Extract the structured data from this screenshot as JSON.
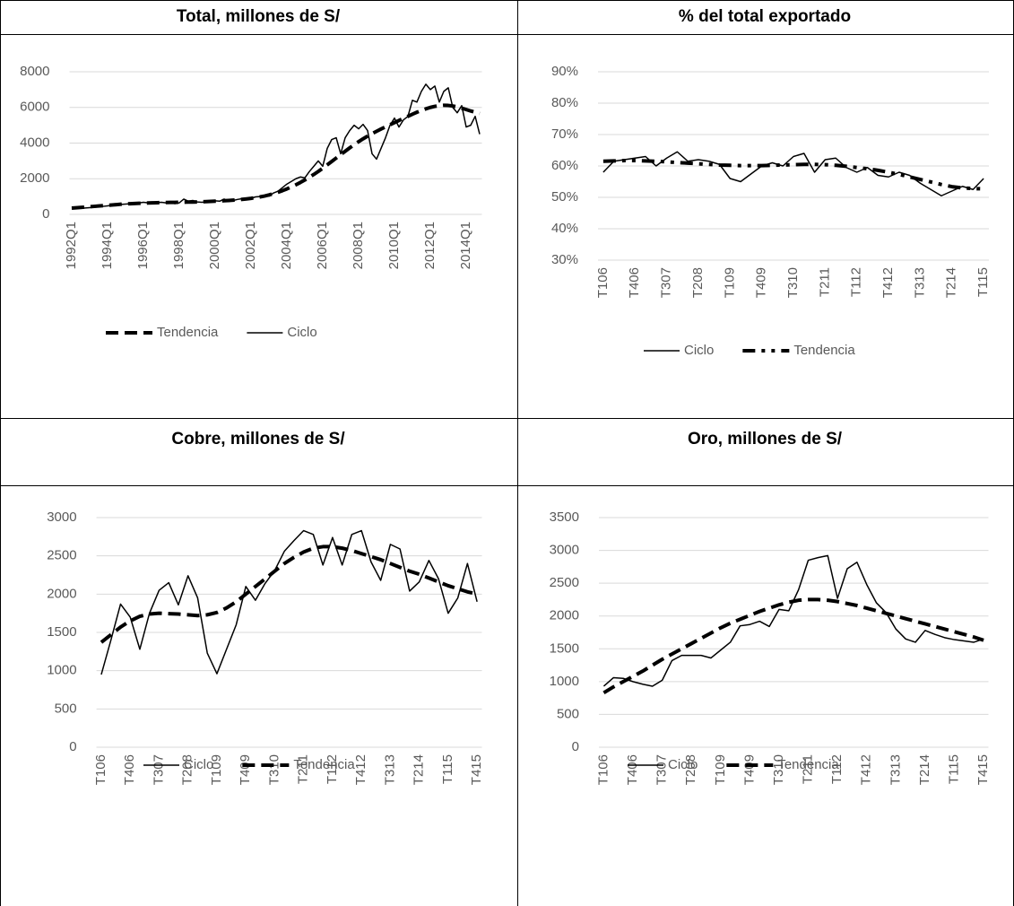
{
  "chart_data": [
    {
      "type": "line",
      "title": "Total, millones de S/",
      "categories": [
        "1992Q1",
        null,
        null,
        null,
        null,
        null,
        null,
        null,
        "1994Q1",
        null,
        null,
        null,
        null,
        null,
        null,
        null,
        "1996Q1",
        null,
        null,
        null,
        null,
        null,
        null,
        null,
        "1998Q1",
        null,
        null,
        null,
        null,
        null,
        null,
        null,
        "2000Q1",
        null,
        null,
        null,
        null,
        null,
        null,
        null,
        "2002Q1",
        null,
        null,
        null,
        null,
        null,
        null,
        null,
        "2004Q1",
        null,
        null,
        null,
        null,
        null,
        null,
        null,
        "2006Q1",
        null,
        null,
        null,
        null,
        null,
        null,
        null,
        "2008Q1",
        null,
        null,
        null,
        null,
        null,
        null,
        null,
        "2010Q1",
        null,
        null,
        null,
        null,
        null,
        null,
        null,
        "2012Q1",
        null,
        null,
        null,
        null,
        null,
        null,
        null,
        "2014Q1",
        null,
        null,
        null
      ],
      "series": [
        {
          "name": "Tendencia",
          "color": "#000000",
          "dash": "dashed",
          "values": [
            350,
            370,
            390,
            410,
            430,
            450,
            470,
            490,
            510,
            530,
            550,
            570,
            590,
            600,
            610,
            620,
            630,
            640,
            650,
            655,
            660,
            665,
            670,
            675,
            680,
            685,
            690,
            695,
            700,
            710,
            720,
            730,
            740,
            750,
            765,
            780,
            800,
            820,
            845,
            870,
            900,
            940,
            980,
            1030,
            1090,
            1160,
            1240,
            1330,
            1430,
            1540,
            1660,
            1790,
            1930,
            2080,
            2240,
            2410,
            2590,
            2780,
            2970,
            3160,
            3350,
            3540,
            3730,
            3910,
            4080,
            4240,
            4390,
            4530,
            4660,
            4790,
            4910,
            5030,
            5150,
            5270,
            5390,
            5500,
            5620,
            5730,
            5830,
            5920,
            6000,
            6060,
            6100,
            6120,
            6110,
            6080,
            6030,
            5960,
            5880,
            5800,
            5730,
            5660
          ]
        },
        {
          "name": "Ciclo",
          "color": "#000000",
          "dash": "solid",
          "values": [
            330,
            350,
            340,
            360,
            380,
            400,
            420,
            450,
            480,
            500,
            520,
            560,
            580,
            600,
            620,
            640,
            680,
            650,
            700,
            660,
            680,
            650,
            720,
            600,
            650,
            860,
            740,
            780,
            700,
            680,
            700,
            780,
            760,
            740,
            860,
            720,
            780,
            840,
            880,
            820,
            900,
            980,
            1000,
            1060,
            1020,
            1200,
            1300,
            1500,
            1700,
            1850,
            2000,
            2100,
            2050,
            2400,
            2700,
            3000,
            2700,
            3700,
            4200,
            4300,
            3400,
            4300,
            4700,
            5000,
            4800,
            5050,
            4700,
            3400,
            3100,
            3700,
            4300,
            5000,
            5400,
            4900,
            5300,
            5500,
            6400,
            6300,
            6900,
            7300,
            7000,
            7200,
            6300,
            6900,
            7100,
            6000,
            5700,
            6100,
            4900,
            5000,
            5500,
            4500
          ]
        }
      ],
      "ylim": [
        0,
        8000
      ],
      "yticks": [
        0,
        2000,
        4000,
        6000,
        8000
      ],
      "grid": true,
      "legend": "bottom"
    },
    {
      "type": "line",
      "title": "% del total exportado",
      "categories": [
        "T106",
        null,
        null,
        "T406",
        null,
        null,
        "T307",
        null,
        null,
        "T208",
        null,
        null,
        "T109",
        null,
        null,
        "T409",
        null,
        null,
        "T310",
        null,
        null,
        "T211",
        null,
        null,
        "T112",
        null,
        null,
        "T412",
        null,
        null,
        "T313",
        null,
        null,
        "T214",
        null,
        null,
        "T115"
      ],
      "series": [
        {
          "name": "Ciclo",
          "color": "#000000",
          "dash": "solid",
          "values": [
            58,
            61.5,
            62,
            62.5,
            63,
            60,
            62.5,
            64.5,
            61.5,
            62,
            61.5,
            60.5,
            56,
            55,
            57.5,
            60,
            61,
            60,
            63,
            64,
            58,
            62,
            62.5,
            59.5,
            58,
            59.5,
            57,
            56.5,
            58,
            57,
            54.5,
            52.5,
            50.5,
            52,
            53.5,
            52.5,
            56
          ]
        },
        {
          "name": "Tendencia",
          "color": "#000000",
          "dash": "dash-dot-dot",
          "values": [
            61.5,
            61.6,
            61.7,
            61.7,
            61.6,
            61.5,
            61.3,
            61.1,
            60.9,
            60.7,
            60.5,
            60.3,
            60.2,
            60.1,
            60.1,
            60.1,
            60.2,
            60.3,
            60.4,
            60.5,
            60.5,
            60.4,
            60.2,
            59.9,
            59.5,
            59.1,
            58.6,
            58,
            57.3,
            56.5,
            55.7,
            54.9,
            54.1,
            53.4,
            53,
            52.8,
            52.7
          ]
        }
      ],
      "ylim": [
        30,
        90
      ],
      "yticks": [
        {
          "value": 30,
          "label": "30%"
        },
        {
          "value": 40,
          "label": "40%"
        },
        {
          "value": 50,
          "label": "50%"
        },
        {
          "value": 60,
          "label": "60%"
        },
        {
          "value": 70,
          "label": "70%"
        },
        {
          "value": 80,
          "label": "80%"
        },
        {
          "value": 90,
          "label": "90%"
        }
      ],
      "grid": true,
      "legend": "bottom"
    },
    {
      "type": "line",
      "title": "Cobre, millones de S/",
      "categories": [
        "T106",
        null,
        null,
        "T406",
        null,
        null,
        "T307",
        null,
        null,
        "T208",
        null,
        null,
        "T109",
        null,
        null,
        "T409",
        null,
        null,
        "T310",
        null,
        null,
        "T211",
        null,
        null,
        "T112",
        null,
        null,
        "T412",
        null,
        null,
        "T313",
        null,
        null,
        "T214",
        null,
        null,
        "T115",
        null,
        null,
        "T415"
      ],
      "series": [
        {
          "name": "Ciclo",
          "color": "#000000",
          "dash": "solid",
          "values": [
            950,
            1400,
            1870,
            1700,
            1280,
            1750,
            2050,
            2150,
            1860,
            2240,
            1950,
            1230,
            960,
            1280,
            1600,
            2100,
            1920,
            2140,
            2310,
            2560,
            2700,
            2830,
            2780,
            2380,
            2740,
            2380,
            2780,
            2830,
            2420,
            2180,
            2650,
            2590,
            2040,
            2160,
            2440,
            2200,
            1750,
            1950,
            2400,
            1900
          ]
        },
        {
          "name": "Tendencia",
          "color": "#000000",
          "dash": "dashed",
          "values": [
            1370,
            1470,
            1570,
            1650,
            1710,
            1740,
            1750,
            1745,
            1740,
            1730,
            1720,
            1730,
            1760,
            1820,
            1900,
            2000,
            2100,
            2200,
            2300,
            2400,
            2480,
            2550,
            2600,
            2620,
            2620,
            2600,
            2570,
            2530,
            2490,
            2450,
            2400,
            2350,
            2300,
            2260,
            2210,
            2160,
            2110,
            2070,
            2030,
            2000
          ]
        }
      ],
      "ylim": [
        0,
        3000
      ],
      "yticks": [
        0,
        500,
        1000,
        1500,
        2000,
        2500,
        3000
      ],
      "grid": true,
      "legend": "bottom"
    },
    {
      "type": "line",
      "title": "Oro, millones de S/",
      "categories": [
        "T106",
        null,
        null,
        "T406",
        null,
        null,
        "T307",
        null,
        null,
        "T208",
        null,
        null,
        "T109",
        null,
        null,
        "T409",
        null,
        null,
        "T310",
        null,
        null,
        "T211",
        null,
        null,
        "T112",
        null,
        null,
        "T412",
        null,
        null,
        "T313",
        null,
        null,
        "T214",
        null,
        null,
        "T115",
        null,
        null,
        "T415"
      ],
      "series": [
        {
          "name": "Ciclo",
          "color": "#000000",
          "dash": "solid",
          "values": [
            930,
            1060,
            1050,
            1000,
            960,
            930,
            1020,
            1320,
            1400,
            1400,
            1400,
            1360,
            1480,
            1600,
            1850,
            1870,
            1920,
            1840,
            2100,
            2080,
            2400,
            2850,
            2890,
            2920,
            2270,
            2720,
            2820,
            2480,
            2200,
            2050,
            1800,
            1650,
            1600,
            1780,
            1720,
            1670,
            1640,
            1620,
            1600,
            1650
          ]
        },
        {
          "name": "Tendencia",
          "color": "#000000",
          "dash": "dashed",
          "values": [
            830,
            920,
            1000,
            1080,
            1160,
            1250,
            1340,
            1420,
            1500,
            1580,
            1660,
            1740,
            1820,
            1890,
            1950,
            2010,
            2070,
            2120,
            2170,
            2210,
            2240,
            2250,
            2250,
            2240,
            2220,
            2190,
            2160,
            2120,
            2080,
            2040,
            2000,
            1960,
            1920,
            1880,
            1840,
            1800,
            1760,
            1720,
            1680,
            1630
          ]
        }
      ],
      "ylim": [
        0,
        3500
      ],
      "yticks": [
        0,
        500,
        1000,
        1500,
        2000,
        2500,
        3000,
        3500
      ],
      "grid": true,
      "legend": "bottom"
    }
  ]
}
